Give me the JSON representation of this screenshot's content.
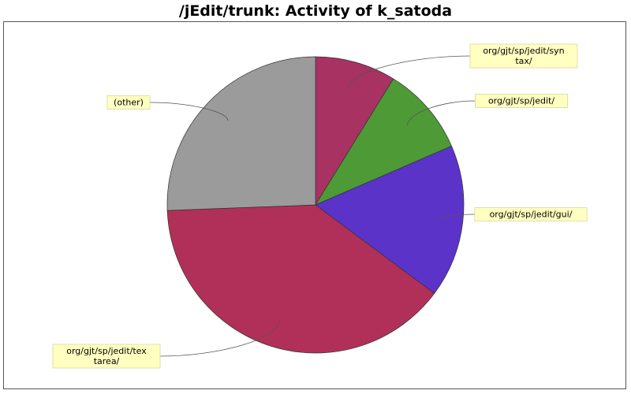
{
  "chart_data": {
    "type": "pie",
    "title": "/jEdit/trunk: Activity of k_satoda",
    "start_angle_deg": 90,
    "direction": "clockwise",
    "slices": [
      {
        "label": "org/gjt/sp/jedit/syntax/",
        "label_lines": [
          "org/gjt/sp/jedit/syn",
          "tax/"
        ],
        "value": 8.8,
        "color": "#a83262"
      },
      {
        "label": "org/gjt/sp/jedit/",
        "label_lines": [
          "org/gjt/sp/jedit/"
        ],
        "value": 9.7,
        "color": "#4e9a36"
      },
      {
        "label": "org/gjt/sp/jedit/gui/",
        "label_lines": [
          "org/gjt/sp/jedit/gui/"
        ],
        "value": 16.7,
        "color": "#5b33c8"
      },
      {
        "label": "org/gjt/sp/jedit/textarea/",
        "label_lines": [
          "org/gjt/sp/jedit/tex",
          "tarea/"
        ],
        "value": 39.2,
        "color": "#b03059"
      },
      {
        "label": "(other)",
        "label_lines": [
          "(other)"
        ],
        "value": 25.6,
        "color": "#9b9b9b"
      }
    ]
  }
}
